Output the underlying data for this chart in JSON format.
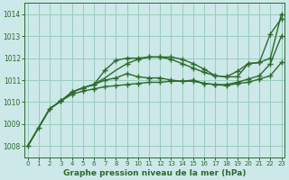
{
  "title": "Graphe pression niveau de la mer (hPa)",
  "ylim": [
    1007.5,
    1014.5
  ],
  "yticks": [
    1008,
    1009,
    1010,
    1011,
    1012,
    1013,
    1014
  ],
  "xlim": [
    -0.3,
    23.3
  ],
  "xticks": [
    0,
    1,
    2,
    3,
    4,
    5,
    6,
    7,
    8,
    9,
    10,
    11,
    12,
    13,
    14,
    15,
    16,
    17,
    18,
    19,
    20,
    21,
    22,
    23
  ],
  "line_color": "#2d6a2d",
  "bg_color": "#cce8e8",
  "grid_color": "#99ccbb",
  "lines": [
    {
      "x": [
        0,
        1,
        2,
        3,
        4,
        5,
        6,
        7,
        8,
        9,
        10,
        11,
        12,
        13,
        14,
        15,
        16,
        17,
        18,
        19,
        20,
        21,
        22,
        23
      ],
      "y": [
        1008.0,
        1008.85,
        1009.7,
        1010.05,
        1010.45,
        1010.65,
        1010.8,
        1011.45,
        1011.9,
        1012.0,
        1012.0,
        1012.05,
        1012.05,
        1012.05,
        1011.95,
        1011.75,
        1011.5,
        1011.2,
        1011.15,
        1011.15,
        1011.75,
        1011.8,
        1013.1,
        1013.8
      ],
      "markers_at": [
        0,
        1,
        2,
        3,
        4,
        5,
        6,
        7,
        8,
        9,
        10,
        11,
        12,
        13,
        14,
        15,
        16,
        17,
        18,
        19,
        20,
        21,
        22,
        23
      ]
    },
    {
      "x": [
        0,
        1,
        2,
        3,
        4,
        5,
        6,
        7,
        8,
        9,
        10,
        11,
        12,
        13,
        14,
        15,
        16,
        17,
        18,
        19,
        20,
        21,
        22,
        23
      ],
      "y": [
        1008.0,
        1008.85,
        1009.7,
        1010.05,
        1010.45,
        1010.65,
        1010.8,
        1011.1,
        1011.45,
        1011.75,
        1011.95,
        1012.05,
        1012.05,
        1011.95,
        1011.75,
        1011.55,
        1011.35,
        1011.2,
        1011.15,
        1011.4,
        1011.75,
        1011.8,
        1012.0,
        1014.0
      ],
      "markers_at": [
        9,
        10,
        11,
        12,
        13,
        14,
        15,
        16,
        17,
        18,
        19,
        20,
        21,
        22,
        23
      ]
    },
    {
      "x": [
        0,
        1,
        2,
        3,
        4,
        5,
        6,
        7,
        8,
        9,
        10,
        11,
        12,
        13,
        14,
        15,
        16,
        17,
        18,
        19,
        20,
        21,
        22,
        23
      ],
      "y": [
        1008.0,
        1008.85,
        1009.7,
        1010.05,
        1010.45,
        1010.65,
        1010.8,
        1011.0,
        1011.1,
        1011.3,
        1011.15,
        1011.1,
        1011.1,
        1011.0,
        1010.95,
        1011.0,
        1010.85,
        1010.8,
        1010.8,
        1010.9,
        1011.05,
        1011.2,
        1011.75,
        1013.0
      ],
      "markers_at": [
        3,
        4,
        5,
        6,
        7,
        8,
        9,
        10,
        11,
        12,
        13,
        14,
        15,
        16,
        17,
        18,
        19,
        20,
        21,
        22,
        23
      ]
    },
    {
      "x": [
        0,
        1,
        2,
        3,
        4,
        5,
        6,
        7,
        8,
        9,
        10,
        11,
        12,
        13,
        14,
        15,
        16,
        17,
        18,
        19,
        20,
        21,
        22,
        23
      ],
      "y": [
        1008.0,
        1008.85,
        1009.7,
        1010.05,
        1010.35,
        1010.5,
        1010.6,
        1010.7,
        1010.75,
        1010.8,
        1010.85,
        1010.9,
        1010.9,
        1010.95,
        1010.95,
        1010.95,
        1010.85,
        1010.8,
        1010.75,
        1010.85,
        1010.9,
        1011.05,
        1011.2,
        1011.8
      ],
      "markers_at": [
        3,
        4,
        5,
        6,
        7,
        8,
        9,
        10,
        11,
        12,
        13,
        14,
        15,
        16,
        17,
        18,
        19,
        20,
        21,
        22,
        23
      ]
    }
  ],
  "marker": "+",
  "markersize": 4,
  "linewidth": 1.0
}
